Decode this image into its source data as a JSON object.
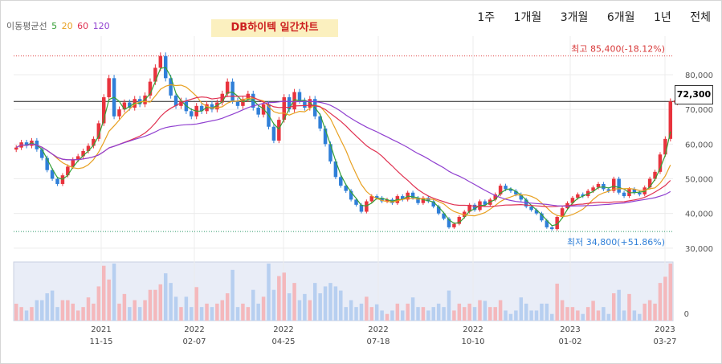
{
  "title": "DB하이텍 일간차트",
  "ma_legend": {
    "label": "이동평균선",
    "periods": [
      {
        "text": "5",
        "color": "#35a035"
      },
      {
        "text": "20",
        "color": "#e8a020"
      },
      {
        "text": "60",
        "color": "#e03050"
      },
      {
        "text": "120",
        "color": "#9040d0"
      }
    ]
  },
  "period_buttons": [
    "1주",
    "1개월",
    "3개월",
    "6개월",
    "1년",
    "전체"
  ],
  "current_price_label": "72,300",
  "chart_data": {
    "type": "candlestick",
    "high_label": "최고 85,400(-18.12%)",
    "low_label": "최저 34,800(+51.86%)",
    "y_ticks": [
      30000,
      40000,
      50000,
      60000,
      70000,
      80000
    ],
    "y_tick_labels": [
      "30,000",
      "40,000",
      "50,000",
      "60,000",
      "70,000",
      "80,000"
    ],
    "ylim": [
      28800,
      88800
    ],
    "x_ticks": [
      {
        "year": "2021",
        "date": "11-15"
      },
      {
        "year": "2022",
        "date": "02-07"
      },
      {
        "year": "2022",
        "date": "04-25"
      },
      {
        "year": "2022",
        "date": "07-18"
      },
      {
        "year": "2022",
        "date": "10-10"
      },
      {
        "year": "2023",
        "date": "01-02"
      },
      {
        "year": "2023",
        "date": "03-27"
      }
    ],
    "high_value": 85400,
    "low_value": 34800,
    "current_value": 72300,
    "volume_zero_label": "0",
    "colors": {
      "up": "#e8333d",
      "down": "#2f7fd8",
      "ma5": "#35a035",
      "ma20": "#e8a020",
      "ma60": "#e03050",
      "ma120": "#9040d0"
    },
    "close_series": [
      59000,
      60500,
      59500,
      61000,
      58500,
      56000,
      52500,
      50000,
      48500,
      51000,
      53500,
      55500,
      56500,
      58000,
      59500,
      61500,
      66000,
      73500,
      79000,
      68000,
      70000,
      72000,
      70500,
      73000,
      71500,
      74000,
      78000,
      82000,
      85400,
      79000,
      74000,
      71000,
      72500,
      69500,
      68000,
      71000,
      69500,
      71500,
      70000,
      72000,
      74500,
      78000,
      72500,
      71000,
      73000,
      74500,
      70500,
      68500,
      71500,
      65000,
      61000,
      67000,
      73500,
      70000,
      75000,
      72500,
      70500,
      73000,
      68000,
      64500,
      60000,
      55000,
      50500,
      48000,
      46500,
      44000,
      42500,
      40500,
      43500,
      45000,
      44500,
      43500,
      44000,
      43000,
      45000,
      44000,
      46000,
      44500,
      43000,
      44500,
      43500,
      42000,
      40000,
      38500,
      36000,
      37000,
      39000,
      40500,
      42500,
      41000,
      43500,
      42500,
      44000,
      45500,
      48000,
      47000,
      46500,
      45500,
      44000,
      42000,
      41000,
      40000,
      38000,
      36000,
      35500,
      39000,
      41500,
      43000,
      44500,
      45500,
      45000,
      46500,
      47500,
      48500,
      47000,
      46500,
      50000,
      46000,
      45000,
      47000,
      46000,
      45500,
      47500,
      50000,
      52000,
      57000,
      61500,
      72300
    ]
  }
}
